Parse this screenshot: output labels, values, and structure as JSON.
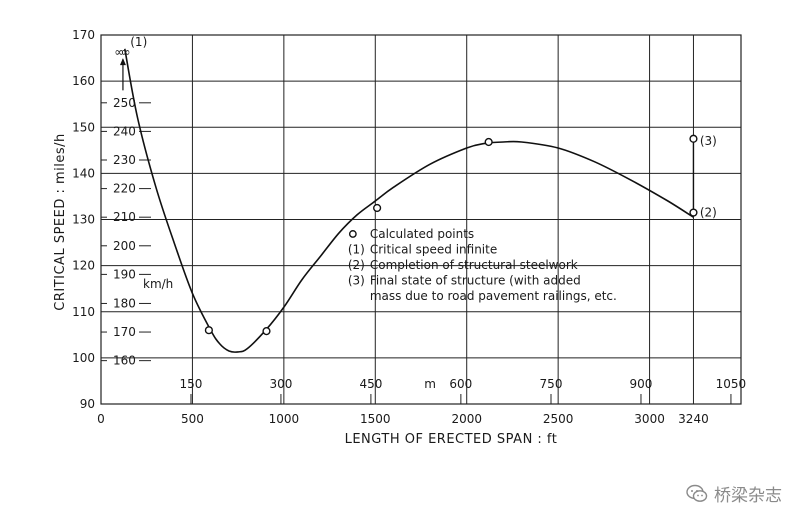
{
  "chart_data": {
    "type": "line",
    "ylabel": "CRITICAL SPEED : miles/h",
    "xlabel": "LENGTH OF ERECTED SPAN : ft",
    "xlim": [
      0,
      3500
    ],
    "ylim": [
      90,
      170
    ],
    "x_ticks": [
      "0",
      "500",
      "1000",
      "1500",
      "2000",
      "2500",
      "3000",
      "3240"
    ],
    "x_tick_values": [
      0,
      500,
      1000,
      1500,
      2000,
      2500,
      3000,
      3240
    ],
    "y_ticks": [
      "90",
      "100",
      "110",
      "120",
      "130",
      "140",
      "150",
      "160",
      "170"
    ],
    "y_tick_values": [
      90,
      100,
      110,
      120,
      130,
      140,
      150,
      160,
      170
    ],
    "secondary_x": {
      "unit_label": "m",
      "ticks": [
        "150",
        "300",
        "450",
        "600",
        "750",
        "900",
        "1050"
      ],
      "values_ft": [
        492,
        984,
        1476,
        1968,
        2461,
        2953,
        3445
      ]
    },
    "secondary_y": {
      "unit_label": "km/h",
      "ticks": [
        "160",
        "170",
        "180",
        "190",
        "200",
        "210",
        "220",
        "230",
        "240",
        "250"
      ],
      "values_mph": [
        99.4,
        105.6,
        111.8,
        118.1,
        124.3,
        130.5,
        136.7,
        142.9,
        149.1,
        155.3
      ]
    },
    "curve": {
      "x": [
        130,
        200,
        300,
        400,
        500,
        600,
        650,
        700,
        750,
        800,
        900,
        1000,
        1100,
        1200,
        1300,
        1400,
        1500,
        1600,
        1800,
        2000,
        2100,
        2200,
        2300,
        2500,
        2700,
        2900,
        3100,
        3240
      ],
      "y": [
        167,
        152,
        137,
        125,
        114,
        106,
        103,
        101.5,
        101.3,
        102,
        106,
        111,
        117,
        122,
        127,
        131,
        134,
        137,
        142,
        145.5,
        146.5,
        146.8,
        146.8,
        145.5,
        142.5,
        138.5,
        134,
        130.5
      ]
    },
    "calculated_points": [
      {
        "x": 590,
        "y": 106
      },
      {
        "x": 905,
        "y": 105.8
      },
      {
        "x": 1510,
        "y": 132.5
      },
      {
        "x": 2120,
        "y": 146.8
      },
      {
        "x": 3240,
        "y": 131.5
      }
    ],
    "infinite_markers": [
      {
        "label": "∞",
        "x": 100
      },
      {
        "label": "∞",
        "x": 135
      }
    ],
    "point_labels": [
      {
        "label": "(1)",
        "x": 160,
        "y": 168.5
      },
      {
        "label": "(3)",
        "x": 3275,
        "y": 147
      },
      {
        "label": "(2)",
        "x": 3275,
        "y": 131.5
      }
    ],
    "jump": {
      "x": 3240,
      "y_from": 131.5,
      "y_to": 147.5
    },
    "legend": {
      "placement": "center-right",
      "entries": [
        {
          "marker": "o",
          "text": "Calculated points"
        },
        {
          "marker": "(1)",
          "text": "Critical speed infinite"
        },
        {
          "marker": "(2)",
          "text": "Completion of structural steelwork"
        },
        {
          "marker": "(3)",
          "text": "Final state of structure (with added"
        },
        {
          "marker": "",
          "text": "mass due to road pavement railings, etc."
        }
      ]
    }
  },
  "watermark": {
    "text": "桥梁杂志",
    "icon": "wechat-icon"
  }
}
